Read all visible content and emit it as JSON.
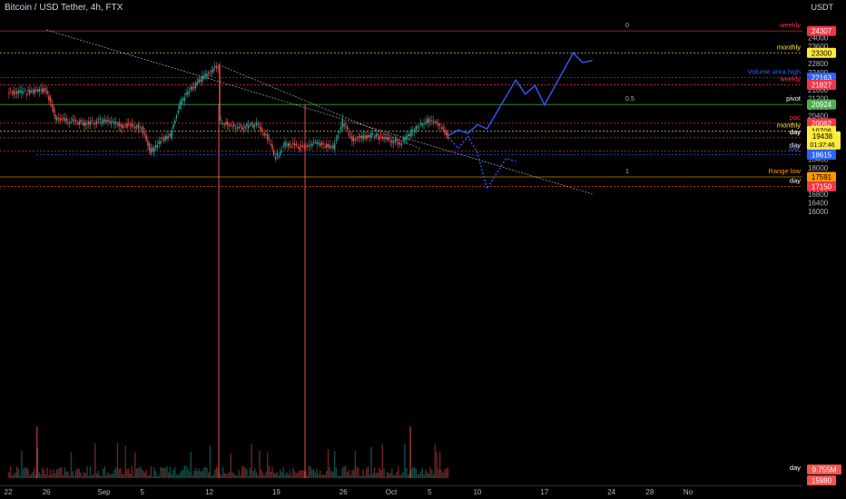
{
  "header": {
    "symbol_title": "Bitcoin / USD Tether, 4h, FTX",
    "currency": "USDT"
  },
  "colors": {
    "background": "#000000",
    "up": "#26a69a",
    "down": "#ef5350",
    "grid_text": "#b2b5be",
    "red_level": "#f23645",
    "green_level": "#4caf50",
    "yellow_level": "#ffeb3b",
    "blue_level": "#2962ff",
    "orange_level": "#ff9800",
    "white_level": "#ffffff",
    "projection": "#2f5bff"
  },
  "chart_data": {
    "type": "candlestick",
    "title": "Bitcoin / USD Tether, 4h, FTX",
    "price_axis": {
      "ticks": [
        24000,
        23600,
        23200,
        22800,
        22400,
        22000,
        21600,
        21200,
        20800,
        20400,
        18400,
        18000,
        17600,
        16800,
        16400,
        16000
      ],
      "range": [
        15880,
        24420
      ]
    },
    "time_axis": {
      "labels": [
        {
          "date": "Aug 22",
          "text": "22"
        },
        {
          "date": "Aug 26",
          "text": "26"
        },
        {
          "date": "Sep 1",
          "text": "Sep"
        },
        {
          "date": "Sep 5",
          "text": "5"
        },
        {
          "date": "Sep 12",
          "text": "12"
        },
        {
          "date": "Sep 19",
          "text": "19"
        },
        {
          "date": "Sep 26",
          "text": "26"
        },
        {
          "date": "Oct 1",
          "text": "Oct"
        },
        {
          "date": "Oct 5",
          "text": "5"
        },
        {
          "date": "Oct 10",
          "text": "10"
        },
        {
          "date": "Oct 17",
          "text": "17"
        },
        {
          "date": "Oct 24",
          "text": "24"
        },
        {
          "date": "Oct 28",
          "text": "28"
        },
        {
          "date": "Nov 1",
          "text": "No"
        }
      ]
    },
    "price_path": [
      {
        "date": "Aug 22",
        "close": 21450
      },
      {
        "date": "Aug 24",
        "close": 21500
      },
      {
        "date": "Aug 26",
        "close": 21600
      },
      {
        "date": "Aug 27",
        "close": 20300
      },
      {
        "date": "Aug 30",
        "close": 20050
      },
      {
        "date": "Sep 1",
        "close": 20150
      },
      {
        "date": "Sep 3",
        "close": 19950
      },
      {
        "date": "Sep 5",
        "close": 19900
      },
      {
        "date": "Sep 6",
        "close": 18750
      },
      {
        "date": "Sep 7",
        "close": 19300
      },
      {
        "date": "Sep 8",
        "close": 19450
      },
      {
        "date": "Sep 9",
        "close": 21000
      },
      {
        "date": "Sep 10",
        "close": 21550
      },
      {
        "date": "Sep 12",
        "close": 22400
      },
      {
        "date": "Sep 13",
        "close": 22700
      },
      {
        "date": "Sep 13",
        "close": 20150
      },
      {
        "date": "Sep 15",
        "close": 19850
      },
      {
        "date": "Sep 17",
        "close": 20000
      },
      {
        "date": "Sep 18",
        "close": 19450
      },
      {
        "date": "Sep 19",
        "close": 18500
      },
      {
        "date": "Sep 20",
        "close": 19100
      },
      {
        "date": "Sep 22",
        "close": 18900
      },
      {
        "date": "Sep 23",
        "close": 19200
      },
      {
        "date": "Sep 25",
        "close": 18900
      },
      {
        "date": "Sep 26",
        "close": 20150
      },
      {
        "date": "Sep 27",
        "close": 19300
      },
      {
        "date": "Sep 29",
        "close": 19500
      },
      {
        "date": "Oct 2",
        "close": 19150
      },
      {
        "date": "Oct 4",
        "close": 20000
      },
      {
        "date": "Oct 5",
        "close": 20200
      },
      {
        "date": "Oct 6",
        "close": 19950
      },
      {
        "date": "Oct 7",
        "close": 19438
      }
    ],
    "volume": {
      "labels": [
        "9.755M",
        "15980"
      ],
      "spikes": [
        {
          "date": "Sep 13"
        },
        {
          "date": "Sep 22"
        },
        {
          "date": "Aug 25"
        },
        {
          "date": "Oct 3"
        }
      ]
    },
    "horizontal_levels": [
      {
        "text": "weekly",
        "badge": "24307",
        "price": 24307,
        "color": "red_level"
      },
      {
        "text": "monthly",
        "badge": "23300",
        "price": 23300,
        "color": "yellow_level"
      },
      {
        "text": "Volume area high",
        "badge": "22163",
        "price": 22163,
        "color": "blue_level"
      },
      {
        "text": "weekly",
        "badge": "21827",
        "price": 21827,
        "color": "red_level"
      },
      {
        "text": "pivot",
        "badge": "20924",
        "price": 20924,
        "color": "green_level"
      },
      {
        "text": "poc",
        "badge": "20062",
        "price": 20062,
        "color": "red_level"
      },
      {
        "text": "monthly",
        "badge": "19706",
        "price": 19706,
        "color": "yellow_level"
      },
      {
        "text": "day",
        "badge": "19395",
        "price": 19395,
        "color": "red_level"
      },
      {
        "text": "day",
        "badge": "18775",
        "price": 18775,
        "color": "red_level"
      },
      {
        "text": "VAL",
        "badge": "18615",
        "price": 18615,
        "color": "blue_level"
      },
      {
        "text": "Range low",
        "badge": "17591",
        "price": 17591,
        "color": "orange_level"
      },
      {
        "text": "day",
        "badge": "17150",
        "price": 17150,
        "color": "red_level"
      }
    ],
    "current_price": {
      "value": "19438",
      "countdown": "01:37:46"
    },
    "fib_labels": [
      {
        "text": "0",
        "price": 24307
      },
      {
        "text": "0.5",
        "price": 20924
      },
      {
        "text": "1",
        "price": 17591
      }
    ],
    "trend_lines": [
      {
        "from": {
          "date": "Aug 26",
          "price": 24360
        },
        "to": {
          "date": "Oct 22",
          "price": 16800
        }
      },
      {
        "from": {
          "date": "Sep 13",
          "price": 22750
        },
        "to": {
          "date": "Oct 4",
          "price": 18900
        }
      }
    ],
    "bullish_projection": [
      {
        "date": "Oct 7",
        "price": 19500
      },
      {
        "date": "Oct 8",
        "price": 19750
      },
      {
        "date": "Oct 9",
        "price": 19600
      },
      {
        "date": "Oct 10",
        "price": 20000
      },
      {
        "date": "Oct 11",
        "price": 19800
      },
      {
        "date": "Oct 14",
        "price": 22050
      },
      {
        "date": "Oct 15",
        "price": 21400
      },
      {
        "date": "Oct 16",
        "price": 21800
      },
      {
        "date": "Oct 17",
        "price": 20900
      },
      {
        "date": "Oct 20",
        "price": 23300
      },
      {
        "date": "Oct 21",
        "price": 22850
      },
      {
        "date": "Oct 22",
        "price": 22950
      }
    ],
    "bearish_projection": [
      {
        "date": "Oct 7",
        "price": 19400
      },
      {
        "date": "Oct 8",
        "price": 18900
      },
      {
        "date": "Oct 9",
        "price": 19450
      },
      {
        "date": "Oct 10",
        "price": 18700
      },
      {
        "date": "Oct 11",
        "price": 17050
      },
      {
        "date": "Oct 13",
        "price": 18450
      },
      {
        "date": "Oct 14",
        "price": 18300
      }
    ]
  }
}
